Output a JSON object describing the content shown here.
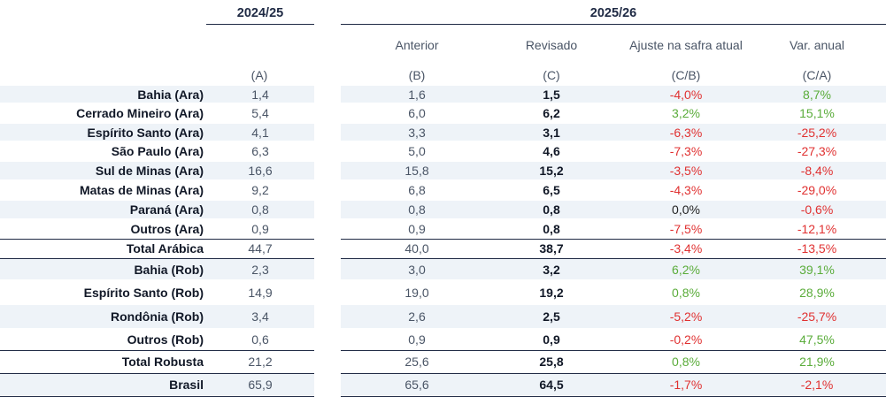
{
  "header": {
    "period_prev": "2024/25",
    "period_curr": "2025/26",
    "columns": [
      "Anterior",
      "Revisado",
      "Ajuste na safra atual",
      "Var. anual"
    ],
    "codes": [
      "(A)",
      "(B)",
      "(C)",
      "(C/B)",
      "(C/A)"
    ]
  },
  "rows": [
    {
      "label": "Bahia (Ara)",
      "a": "1,4",
      "b": "1,6",
      "c": "1,5",
      "cb": "-4,0%",
      "ca": "8,7%",
      "cb_sign": "neg",
      "ca_sign": "pos"
    },
    {
      "label": "Cerrado Mineiro (Ara)",
      "a": "5,4",
      "b": "6,0",
      "c": "6,2",
      "cb": "3,2%",
      "ca": "15,1%",
      "cb_sign": "pos",
      "ca_sign": "pos"
    },
    {
      "label": "Espírito Santo (Ara)",
      "a": "4,1",
      "b": "3,3",
      "c": "3,1",
      "cb": "-6,3%",
      "ca": "-25,2%",
      "cb_sign": "neg",
      "ca_sign": "neg"
    },
    {
      "label": "São Paulo (Ara)",
      "a": "6,3",
      "b": "5,0",
      "c": "4,6",
      "cb": "-7,3%",
      "ca": "-27,3%",
      "cb_sign": "neg",
      "ca_sign": "neg"
    },
    {
      "label": "Sul de Minas (Ara)",
      "a": "16,6",
      "b": "15,8",
      "c": "15,2",
      "cb": "-3,5%",
      "ca": "-8,4%",
      "cb_sign": "neg",
      "ca_sign": "neg"
    },
    {
      "label": "Matas de Minas (Ara)",
      "a": "9,2",
      "b": "6,8",
      "c": "6,5",
      "cb": "-4,3%",
      "ca": "-29,0%",
      "cb_sign": "neg",
      "ca_sign": "neg"
    },
    {
      "label": "Paraná (Ara)",
      "a": "0,8",
      "b": "0,8",
      "c": "0,8",
      "cb": "0,0%",
      "ca": "-0,6%",
      "cb_sign": "zero",
      "ca_sign": "neg"
    },
    {
      "label": "Outros (Ara)",
      "a": "0,9",
      "b": "0,9",
      "c": "0,8",
      "cb": "-7,5%",
      "ca": "-12,1%",
      "cb_sign": "neg",
      "ca_sign": "neg"
    },
    {
      "label": "Total Arábica",
      "a": "44,7",
      "b": "40,0",
      "c": "38,7",
      "cb": "-3,4%",
      "ca": "-13,5%",
      "cb_sign": "neg",
      "ca_sign": "neg"
    },
    {
      "label": "Bahia (Rob)",
      "a": "2,3",
      "b": "3,0",
      "c": "3,2",
      "cb": "6,2%",
      "ca": "39,1%",
      "cb_sign": "pos",
      "ca_sign": "pos"
    },
    {
      "label": "Espírito Santo (Rob)",
      "a": "14,9",
      "b": "19,0",
      "c": "19,2",
      "cb": "0,8%",
      "ca": "28,9%",
      "cb_sign": "pos",
      "ca_sign": "pos"
    },
    {
      "label": "Rondônia (Rob)",
      "a": "3,4",
      "b": "2,6",
      "c": "2,5",
      "cb": "-5,2%",
      "ca": "-25,7%",
      "cb_sign": "neg",
      "ca_sign": "neg"
    },
    {
      "label": "Outros (Rob)",
      "a": "0,6",
      "b": "0,9",
      "c": "0,9",
      "cb": "-0,2%",
      "ca": "47,5%",
      "cb_sign": "neg",
      "ca_sign": "pos"
    },
    {
      "label": "Total Robusta",
      "a": "21,2",
      "b": "25,6",
      "c": "25,8",
      "cb": "0,8%",
      "ca": "21,9%",
      "cb_sign": "pos",
      "ca_sign": "pos"
    },
    {
      "label": "Brasil",
      "a": "65,9",
      "b": "65,6",
      "c": "64,5",
      "cb": "-1,7%",
      "ca": "-2,1%",
      "cb_sign": "neg",
      "ca_sign": "neg"
    }
  ],
  "colors": {
    "negative": "#e03131",
    "positive": "#5aac3a",
    "shade": "#eef3f8",
    "rule": "#1f2a44"
  }
}
